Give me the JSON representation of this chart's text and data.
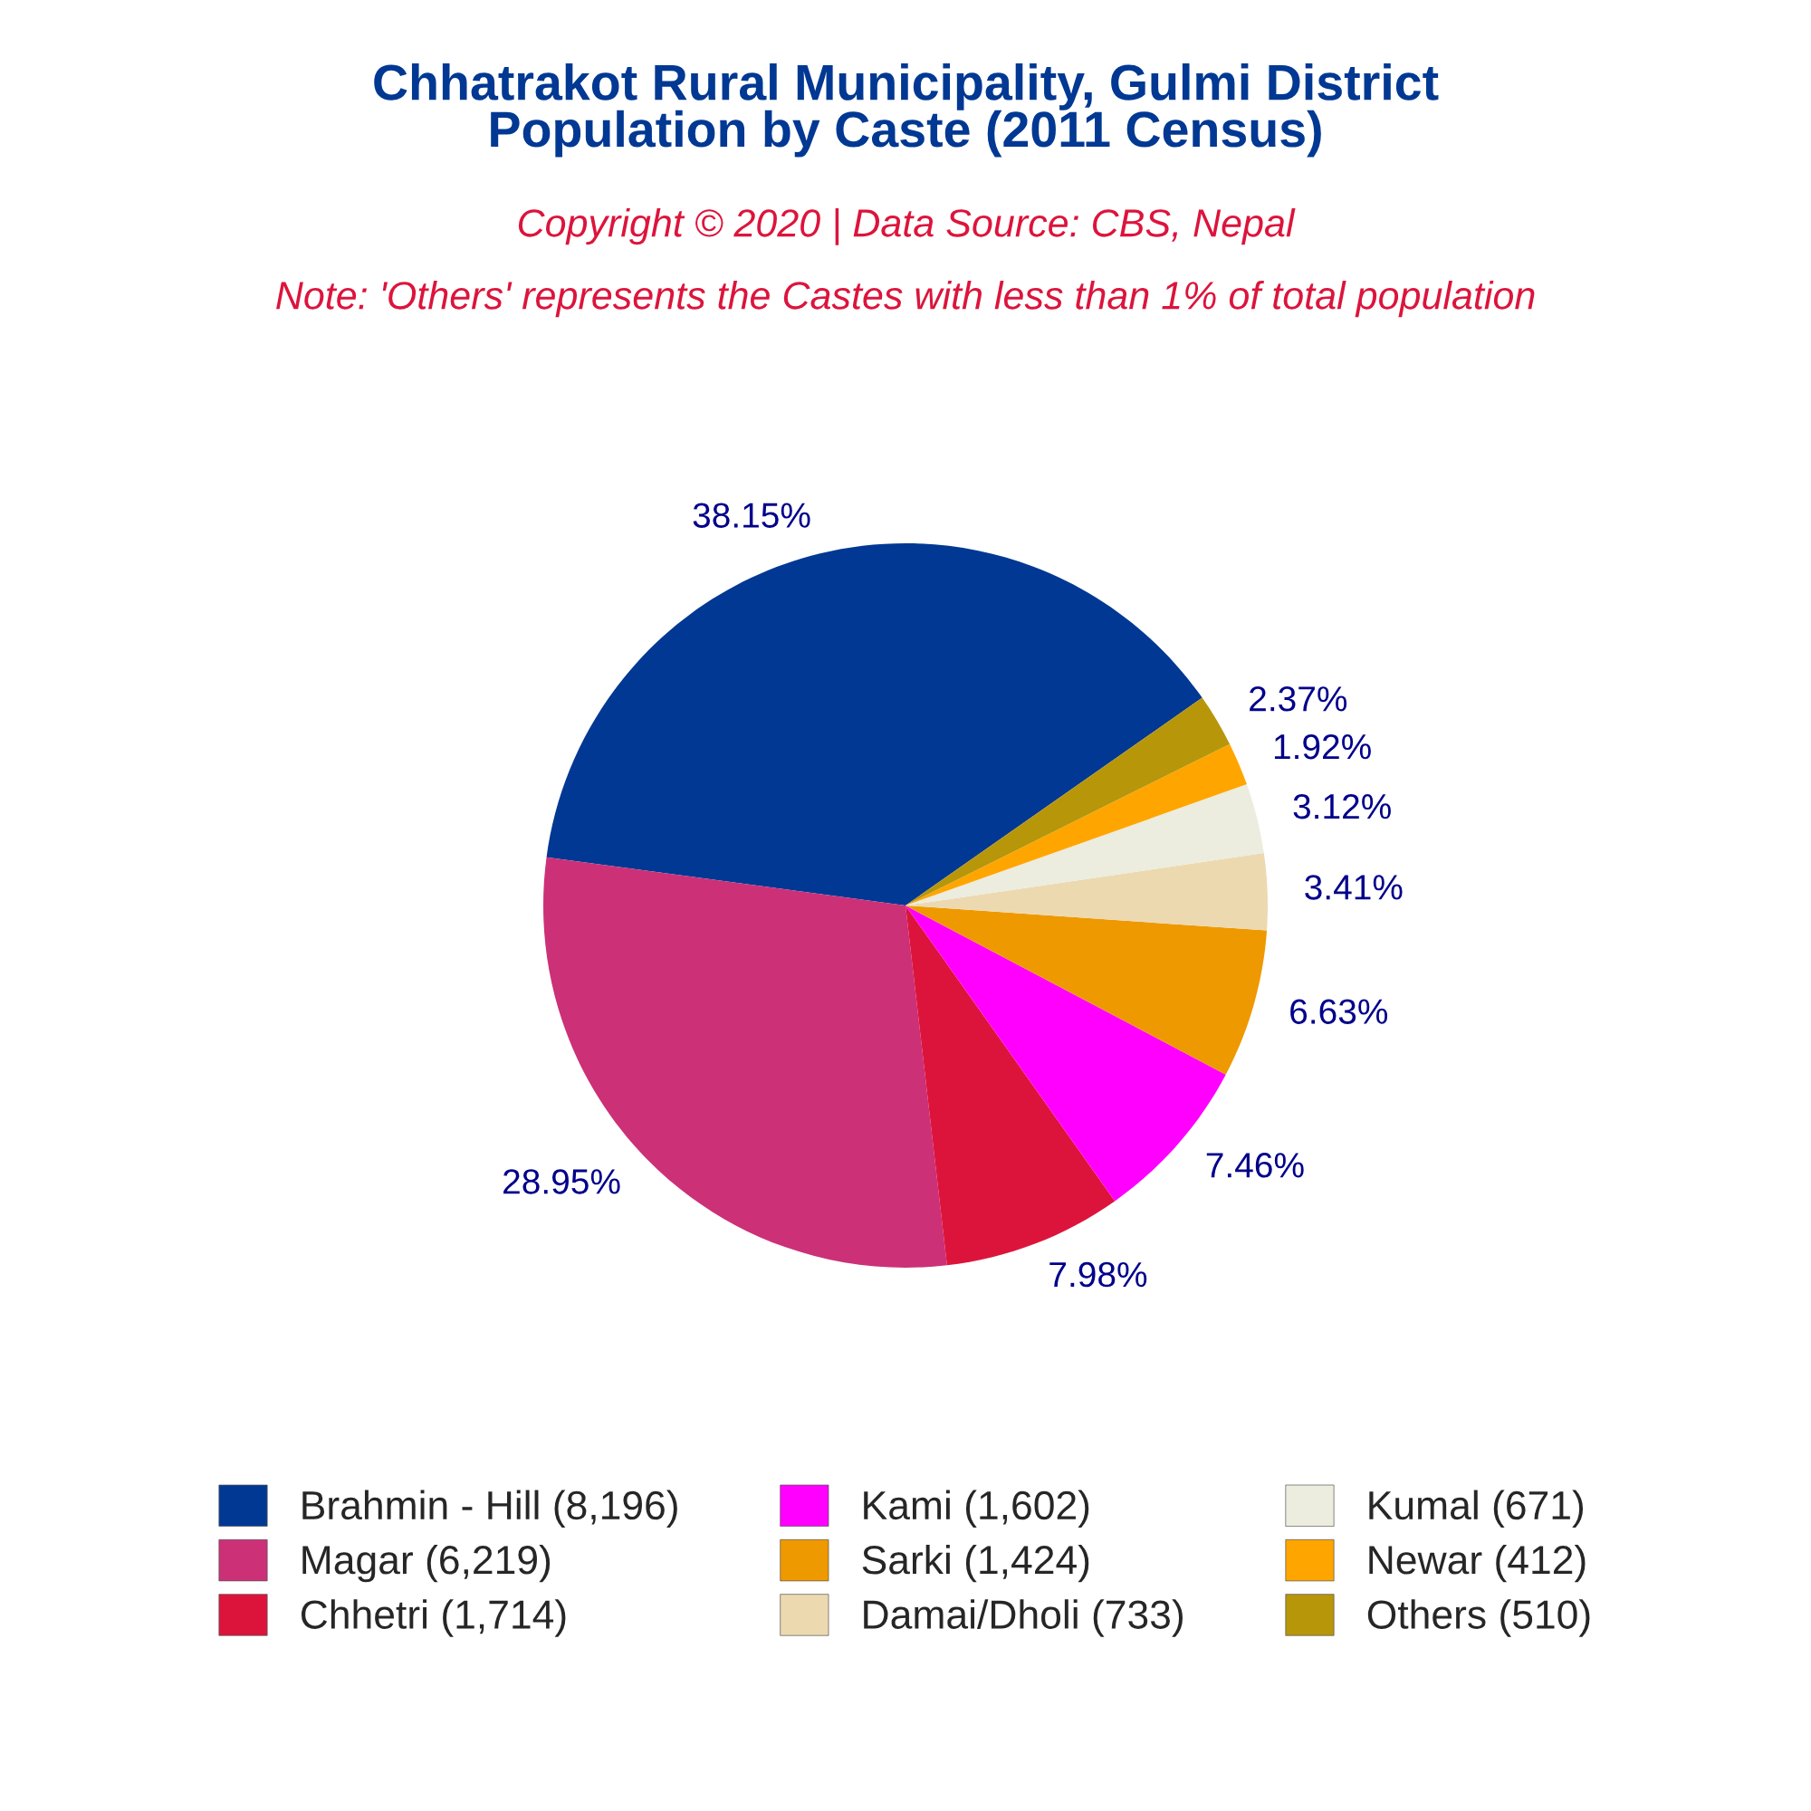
{
  "chart_data": {
    "type": "pie",
    "title": "Chhatrakot Rural Municipality, Gulmi District\nPopulation by Caste (2011 Census)",
    "subtitle": "Copyright © 2020 | Data Source: CBS, Nepal",
    "annotations": [
      "Note: 'Others' represents the Castes with less than 1% of total population"
    ],
    "categories": [
      "Brahmin - Hill (8,196)",
      "Magar (6,219)",
      "Chhetri (1,714)",
      "Kami (1,602)",
      "Sarki (1,424)",
      "Damai/Dholi (733)",
      "Kumal (671)",
      "Newar (412)",
      "Others (510)"
    ],
    "values": [
      38.15,
      28.95,
      7.98,
      7.46,
      6.63,
      3.41,
      3.12,
      1.92,
      2.37
    ],
    "value_labels": [
      "38.15%",
      "28.95%",
      "7.98%",
      "7.46%",
      "6.63%",
      "3.41%",
      "3.12%",
      "1.92%",
      "2.37%"
    ],
    "colors": [
      "#003893",
      "#cc3077",
      "#dc143c",
      "#ff00ff",
      "#ee9900",
      "#ecd9b0",
      "#ececdf",
      "#ffa500",
      "#b8960a"
    ],
    "legend": "bottom"
  }
}
